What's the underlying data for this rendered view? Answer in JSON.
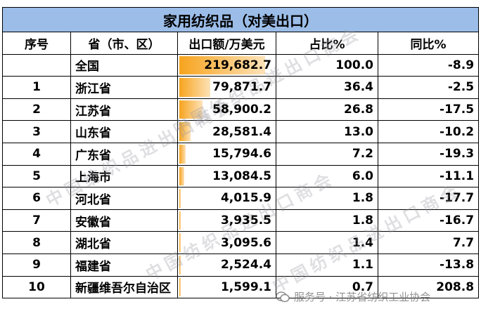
{
  "title": "家用纺织品（对美出口）",
  "headers": {
    "rank": "序号",
    "province": "省（市、区）",
    "export": "出口额/万美元",
    "share": "占比%",
    "yoy": "同比%"
  },
  "rows": [
    {
      "rank": "",
      "province": "全国",
      "export": "219,682.7",
      "share": "100.0",
      "yoy": "-8.9",
      "bar_fraction": 1.0
    },
    {
      "rank": "1",
      "province": "浙江省",
      "export": "79,871.7",
      "share": "36.4",
      "yoy": "-2.5",
      "bar_fraction": 0.364
    },
    {
      "rank": "2",
      "province": "江苏省",
      "export": "58,900.2",
      "share": "26.8",
      "yoy": "-17.5",
      "bar_fraction": 0.268
    },
    {
      "rank": "3",
      "province": "山东省",
      "export": "28,581.4",
      "share": "13.0",
      "yoy": "-10.2",
      "bar_fraction": 0.13
    },
    {
      "rank": "4",
      "province": "广东省",
      "export": "15,794.6",
      "share": "7.2",
      "yoy": "-19.3",
      "bar_fraction": 0.072
    },
    {
      "rank": "5",
      "province": "上海市",
      "export": "13,084.5",
      "share": "6.0",
      "yoy": "-11.1",
      "bar_fraction": 0.06
    },
    {
      "rank": "6",
      "province": "河北省",
      "export": "4,015.9",
      "share": "1.8",
      "yoy": "-17.7",
      "bar_fraction": 0.018
    },
    {
      "rank": "7",
      "province": "安徽省",
      "export": "3,935.5",
      "share": "1.8",
      "yoy": "-16.7",
      "bar_fraction": 0.018
    },
    {
      "rank": "8",
      "province": "湖北省",
      "export": "3,095.6",
      "share": "1.4",
      "yoy": "7.7",
      "bar_fraction": 0.014
    },
    {
      "rank": "9",
      "province": "福建省",
      "export": "2,524.4",
      "share": "1.1",
      "yoy": "-13.8",
      "bar_fraction": 0.011
    },
    {
      "rank": "10",
      "province": "新疆维吾尔自治区",
      "export": "1,599.1",
      "share": "0.7",
      "yoy": "208.8",
      "bar_fraction": 0.007
    }
  ],
  "watermark": "中国纺织品进出口商会",
  "footer": "服务号 · 江苏省纺织工业协会",
  "colors": {
    "title_bg": "#9bbde8",
    "bar_start": "#f7a41e",
    "bar_end": "#fde2b8"
  }
}
